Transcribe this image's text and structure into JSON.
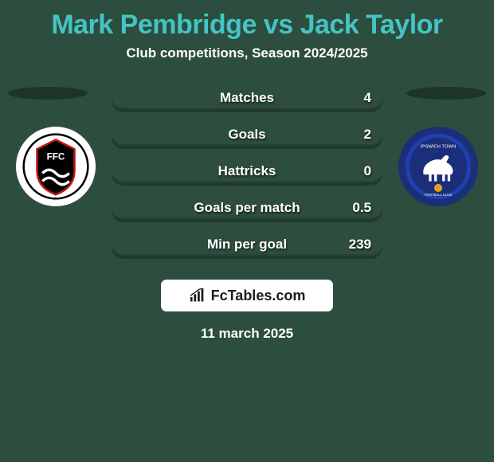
{
  "background_color": "#2d4d3e",
  "title": {
    "text": "Mark Pembridge vs Jack Taylor",
    "color": "#44c4c4",
    "fontsize": 34
  },
  "subtitle": {
    "text": "Club competitions, Season 2024/2025",
    "color": "#ffffff",
    "fontsize": 17
  },
  "shadow_color": "#1b3528",
  "crest_left": {
    "bg": "#ffffff",
    "shield_fill": "#000000",
    "shield_stroke": "#c01818",
    "text_color": "#ffffff"
  },
  "crest_right": {
    "bg": "#1b2e7a",
    "ring": "#2040b0",
    "horse": "#ffffff",
    "ball": "#e0a020"
  },
  "bars": {
    "fill": "#2d4d3e",
    "border": "#284436",
    "label_color": "#ffffff",
    "value_color": "#ffffff",
    "height": 30,
    "radius": 16,
    "gap": 16,
    "fontsize": 17,
    "rows": [
      {
        "label": "Matches",
        "left": "",
        "right": "4"
      },
      {
        "label": "Goals",
        "left": "",
        "right": "2"
      },
      {
        "label": "Hattricks",
        "left": "",
        "right": "0"
      },
      {
        "label": "Goals per match",
        "left": "",
        "right": "0.5"
      },
      {
        "label": "Min per goal",
        "left": "",
        "right": "239"
      }
    ]
  },
  "brand": {
    "bg": "#ffffff",
    "text": "FcTables.com",
    "text_color": "#1b1b1b",
    "icon_color": "#1b1b1b"
  },
  "date": {
    "text": "11 march 2025",
    "color": "#ffffff"
  }
}
